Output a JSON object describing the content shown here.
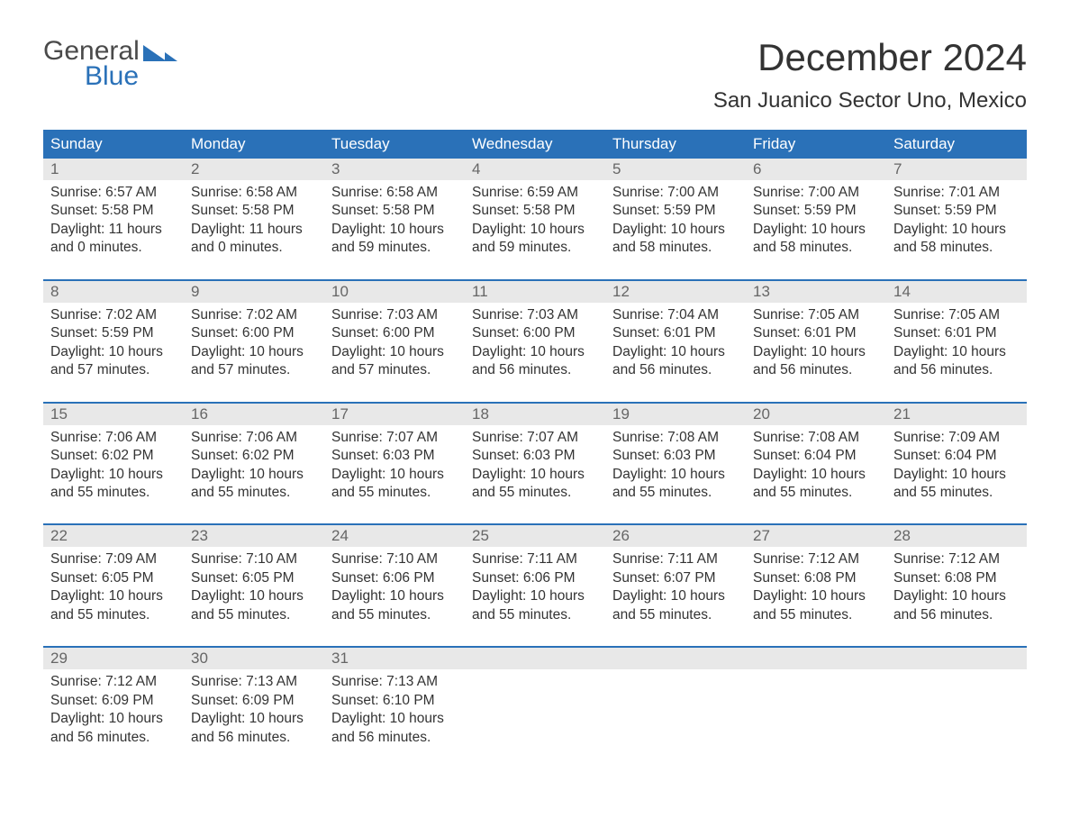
{
  "logo": {
    "text1": "General",
    "text2": "Blue"
  },
  "title": "December 2024",
  "location": "San Juanico Sector Uno, Mexico",
  "colors": {
    "header_bg": "#2a71b8",
    "header_text": "#ffffff",
    "daynum_bg": "#e8e8e8",
    "daynum_text": "#666666",
    "body_text": "#333333",
    "week_border": "#2a71b8"
  },
  "layout": {
    "columns": 7,
    "rows": 5,
    "font_family": "Arial",
    "title_fontsize": 42,
    "location_fontsize": 24,
    "header_fontsize": 17,
    "daynum_fontsize": 17,
    "cell_fontsize": 15.5
  },
  "weekdays": [
    "Sunday",
    "Monday",
    "Tuesday",
    "Wednesday",
    "Thursday",
    "Friday",
    "Saturday"
  ],
  "labels": {
    "sunrise": "Sunrise:",
    "sunset": "Sunset:",
    "daylight": "Daylight:"
  },
  "weeks": [
    [
      {
        "day": "1",
        "sunrise": "6:57 AM",
        "sunset": "5:58 PM",
        "dl1": "11 hours",
        "dl2": "and 0 minutes."
      },
      {
        "day": "2",
        "sunrise": "6:58 AM",
        "sunset": "5:58 PM",
        "dl1": "11 hours",
        "dl2": "and 0 minutes."
      },
      {
        "day": "3",
        "sunrise": "6:58 AM",
        "sunset": "5:58 PM",
        "dl1": "10 hours",
        "dl2": "and 59 minutes."
      },
      {
        "day": "4",
        "sunrise": "6:59 AM",
        "sunset": "5:58 PM",
        "dl1": "10 hours",
        "dl2": "and 59 minutes."
      },
      {
        "day": "5",
        "sunrise": "7:00 AM",
        "sunset": "5:59 PM",
        "dl1": "10 hours",
        "dl2": "and 58 minutes."
      },
      {
        "day": "6",
        "sunrise": "7:00 AM",
        "sunset": "5:59 PM",
        "dl1": "10 hours",
        "dl2": "and 58 minutes."
      },
      {
        "day": "7",
        "sunrise": "7:01 AM",
        "sunset": "5:59 PM",
        "dl1": "10 hours",
        "dl2": "and 58 minutes."
      }
    ],
    [
      {
        "day": "8",
        "sunrise": "7:02 AM",
        "sunset": "5:59 PM",
        "dl1": "10 hours",
        "dl2": "and 57 minutes."
      },
      {
        "day": "9",
        "sunrise": "7:02 AM",
        "sunset": "6:00 PM",
        "dl1": "10 hours",
        "dl2": "and 57 minutes."
      },
      {
        "day": "10",
        "sunrise": "7:03 AM",
        "sunset": "6:00 PM",
        "dl1": "10 hours",
        "dl2": "and 57 minutes."
      },
      {
        "day": "11",
        "sunrise": "7:03 AM",
        "sunset": "6:00 PM",
        "dl1": "10 hours",
        "dl2": "and 56 minutes."
      },
      {
        "day": "12",
        "sunrise": "7:04 AM",
        "sunset": "6:01 PM",
        "dl1": "10 hours",
        "dl2": "and 56 minutes."
      },
      {
        "day": "13",
        "sunrise": "7:05 AM",
        "sunset": "6:01 PM",
        "dl1": "10 hours",
        "dl2": "and 56 minutes."
      },
      {
        "day": "14",
        "sunrise": "7:05 AM",
        "sunset": "6:01 PM",
        "dl1": "10 hours",
        "dl2": "and 56 minutes."
      }
    ],
    [
      {
        "day": "15",
        "sunrise": "7:06 AM",
        "sunset": "6:02 PM",
        "dl1": "10 hours",
        "dl2": "and 55 minutes."
      },
      {
        "day": "16",
        "sunrise": "7:06 AM",
        "sunset": "6:02 PM",
        "dl1": "10 hours",
        "dl2": "and 55 minutes."
      },
      {
        "day": "17",
        "sunrise": "7:07 AM",
        "sunset": "6:03 PM",
        "dl1": "10 hours",
        "dl2": "and 55 minutes."
      },
      {
        "day": "18",
        "sunrise": "7:07 AM",
        "sunset": "6:03 PM",
        "dl1": "10 hours",
        "dl2": "and 55 minutes."
      },
      {
        "day": "19",
        "sunrise": "7:08 AM",
        "sunset": "6:03 PM",
        "dl1": "10 hours",
        "dl2": "and 55 minutes."
      },
      {
        "day": "20",
        "sunrise": "7:08 AM",
        "sunset": "6:04 PM",
        "dl1": "10 hours",
        "dl2": "and 55 minutes."
      },
      {
        "day": "21",
        "sunrise": "7:09 AM",
        "sunset": "6:04 PM",
        "dl1": "10 hours",
        "dl2": "and 55 minutes."
      }
    ],
    [
      {
        "day": "22",
        "sunrise": "7:09 AM",
        "sunset": "6:05 PM",
        "dl1": "10 hours",
        "dl2": "and 55 minutes."
      },
      {
        "day": "23",
        "sunrise": "7:10 AM",
        "sunset": "6:05 PM",
        "dl1": "10 hours",
        "dl2": "and 55 minutes."
      },
      {
        "day": "24",
        "sunrise": "7:10 AM",
        "sunset": "6:06 PM",
        "dl1": "10 hours",
        "dl2": "and 55 minutes."
      },
      {
        "day": "25",
        "sunrise": "7:11 AM",
        "sunset": "6:06 PM",
        "dl1": "10 hours",
        "dl2": "and 55 minutes."
      },
      {
        "day": "26",
        "sunrise": "7:11 AM",
        "sunset": "6:07 PM",
        "dl1": "10 hours",
        "dl2": "and 55 minutes."
      },
      {
        "day": "27",
        "sunrise": "7:12 AM",
        "sunset": "6:08 PM",
        "dl1": "10 hours",
        "dl2": "and 55 minutes."
      },
      {
        "day": "28",
        "sunrise": "7:12 AM",
        "sunset": "6:08 PM",
        "dl1": "10 hours",
        "dl2": "and 56 minutes."
      }
    ],
    [
      {
        "day": "29",
        "sunrise": "7:12 AM",
        "sunset": "6:09 PM",
        "dl1": "10 hours",
        "dl2": "and 56 minutes."
      },
      {
        "day": "30",
        "sunrise": "7:13 AM",
        "sunset": "6:09 PM",
        "dl1": "10 hours",
        "dl2": "and 56 minutes."
      },
      {
        "day": "31",
        "sunrise": "7:13 AM",
        "sunset": "6:10 PM",
        "dl1": "10 hours",
        "dl2": "and 56 minutes."
      },
      null,
      null,
      null,
      null
    ]
  ]
}
